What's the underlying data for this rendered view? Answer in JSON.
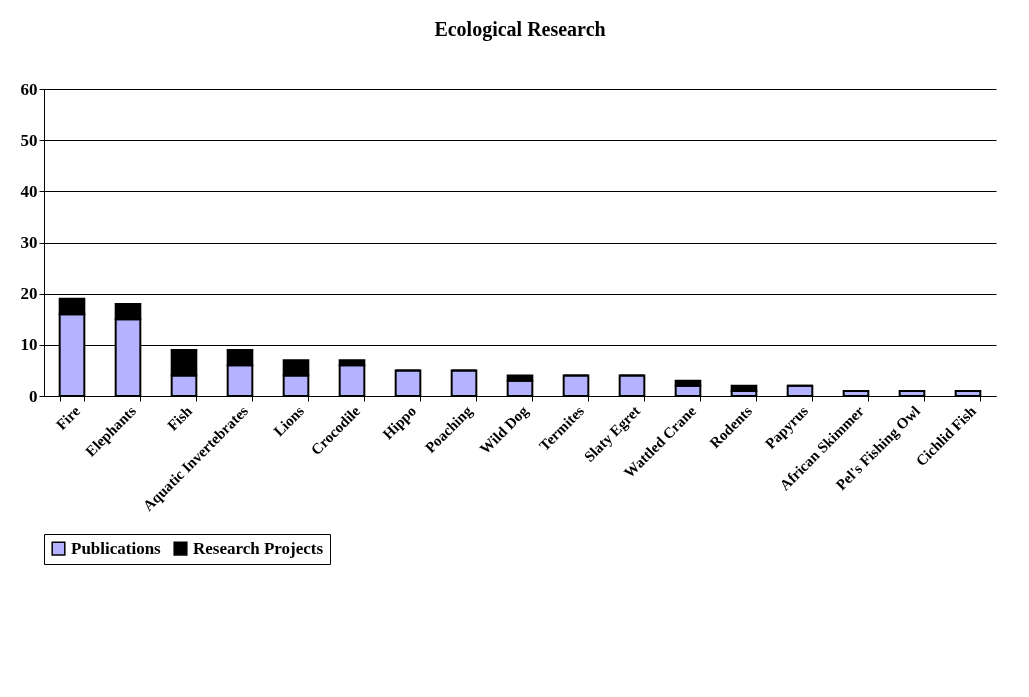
{
  "chart_data": {
    "type": "bar",
    "title": "Ecological Research",
    "stacked": true,
    "categories": [
      "Fire",
      "Elephants",
      "Fish",
      "Aquatic Invertebrates",
      "Lions",
      "Crocodile",
      "Hippo",
      "Poaching",
      "Wild Dog",
      "Termites",
      "Slaty Egret",
      "Wattled Crane",
      "Rodents",
      "Papyrus",
      "African Skimmer",
      "Pel's Fishing Owl",
      "Cichlid Fish"
    ],
    "series": [
      {
        "name": "Publications",
        "color": "#b3b3ff",
        "values": [
          16,
          15,
          4,
          6,
          4,
          6,
          5,
          5,
          3,
          4,
          4,
          2,
          1,
          2,
          1,
          1,
          1
        ]
      },
      {
        "name": "Research Projects",
        "color": "#000000",
        "values": [
          3,
          3,
          5,
          3,
          3,
          1,
          0,
          0,
          1,
          0,
          0,
          1,
          1,
          0,
          0,
          0,
          0
        ]
      }
    ],
    "ylim": [
      0,
      60
    ],
    "yticks": [
      0,
      10,
      20,
      30,
      40,
      50,
      60
    ],
    "grid": "y",
    "legend": "bottom"
  }
}
